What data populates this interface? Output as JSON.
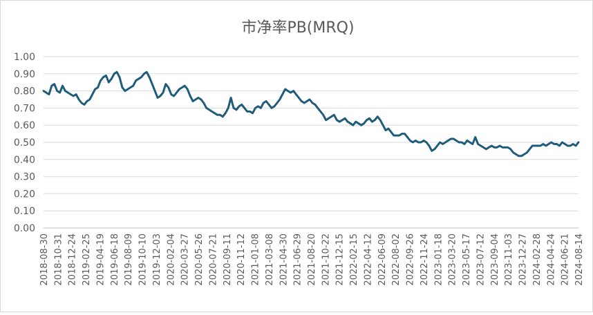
{
  "chart_data": {
    "type": "line",
    "title": "市净率PB(MRQ)",
    "xlabel": "",
    "ylabel": "",
    "ylim": [
      0,
      1.0
    ],
    "yticks": [
      "0.00",
      "0.10",
      "0.20",
      "0.30",
      "0.40",
      "0.50",
      "0.60",
      "0.70",
      "0.80",
      "0.90",
      "1.00"
    ],
    "xticks": [
      "2018-08-30",
      "2018-10-31",
      "2018-12-24",
      "2019-02-25",
      "2019-04-19",
      "2019-06-18",
      "2019-08-09",
      "2019-10-10",
      "2019-12-03",
      "2020-02-04",
      "2020-03-27",
      "2020-05-26",
      "2020-07-21",
      "2020-09-11",
      "2020-11-12",
      "2021-01-08",
      "2021-03-08",
      "2021-04-30",
      "2021-06-29",
      "2021-08-20",
      "2021-10-22",
      "2021-12-15",
      "2022-02-15",
      "2022-04-12",
      "2022-06-09",
      "2022-08-02",
      "2022-09-26",
      "2022-11-24",
      "2023-01-18",
      "2023-03-20",
      "2023-05-17",
      "2023-07-12",
      "2023-09-04",
      "2023-11-03",
      "2023-12-27",
      "2024-02-28",
      "2024-04-24",
      "2024-06-21",
      "2024-08-14"
    ],
    "grid": true,
    "legend": "none",
    "color": "#1f5c7a",
    "series": [
      {
        "name": "市净率PB(MRQ)",
        "values": [
          0.8,
          0.79,
          0.78,
          0.83,
          0.84,
          0.8,
          0.79,
          0.83,
          0.8,
          0.79,
          0.78,
          0.77,
          0.78,
          0.75,
          0.73,
          0.72,
          0.74,
          0.75,
          0.78,
          0.81,
          0.82,
          0.86,
          0.88,
          0.89,
          0.85,
          0.87,
          0.9,
          0.91,
          0.88,
          0.82,
          0.8,
          0.81,
          0.82,
          0.83,
          0.86,
          0.87,
          0.88,
          0.9,
          0.91,
          0.88,
          0.84,
          0.8,
          0.76,
          0.77,
          0.79,
          0.84,
          0.82,
          0.78,
          0.77,
          0.79,
          0.81,
          0.82,
          0.83,
          0.81,
          0.77,
          0.74,
          0.75,
          0.76,
          0.75,
          0.73,
          0.7,
          0.69,
          0.68,
          0.67,
          0.66,
          0.66,
          0.65,
          0.67,
          0.7,
          0.76,
          0.7,
          0.69,
          0.71,
          0.72,
          0.7,
          0.68,
          0.68,
          0.67,
          0.7,
          0.71,
          0.7,
          0.73,
          0.74,
          0.72,
          0.7,
          0.71,
          0.73,
          0.75,
          0.78,
          0.81,
          0.8,
          0.79,
          0.8,
          0.78,
          0.76,
          0.74,
          0.73,
          0.74,
          0.75,
          0.73,
          0.72,
          0.7,
          0.68,
          0.66,
          0.63,
          0.64,
          0.65,
          0.66,
          0.63,
          0.62,
          0.63,
          0.64,
          0.62,
          0.61,
          0.6,
          0.62,
          0.61,
          0.6,
          0.61,
          0.63,
          0.64,
          0.62,
          0.63,
          0.65,
          0.63,
          0.6,
          0.57,
          0.58,
          0.56,
          0.54,
          0.54,
          0.54,
          0.55,
          0.55,
          0.53,
          0.51,
          0.5,
          0.51,
          0.5,
          0.5,
          0.51,
          0.5,
          0.48,
          0.45,
          0.46,
          0.48,
          0.5,
          0.49,
          0.5,
          0.51,
          0.52,
          0.52,
          0.51,
          0.5,
          0.5,
          0.49,
          0.51,
          0.5,
          0.49,
          0.53,
          0.49,
          0.48,
          0.47,
          0.46,
          0.47,
          0.48,
          0.47,
          0.47,
          0.48,
          0.47,
          0.47,
          0.47,
          0.46,
          0.44,
          0.43,
          0.42,
          0.42,
          0.43,
          0.44,
          0.46,
          0.48,
          0.48,
          0.48,
          0.48,
          0.49,
          0.48,
          0.49,
          0.5,
          0.49,
          0.49,
          0.48,
          0.5,
          0.49,
          0.48,
          0.48,
          0.49,
          0.48,
          0.5
        ]
      }
    ]
  }
}
